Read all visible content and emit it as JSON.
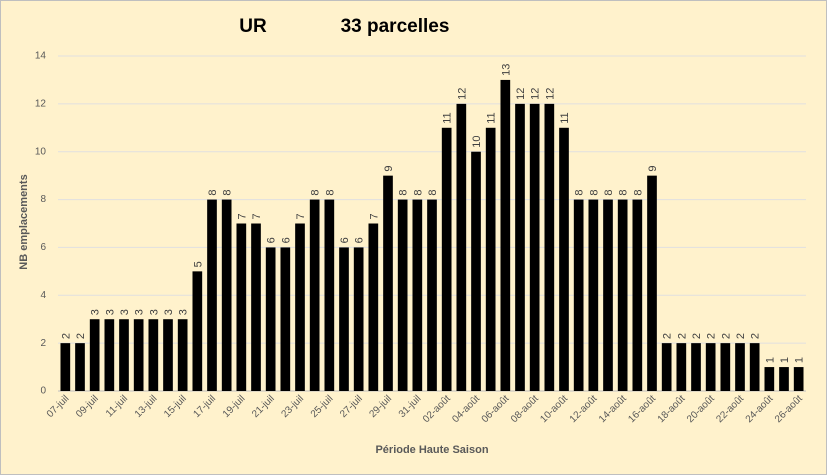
{
  "chart_data": {
    "type": "bar",
    "title": "UR",
    "subtitle": "33 parcelles",
    "x_label": "Période Haute Saison",
    "y_label": "NB emplacements",
    "categories": [
      "07-juil",
      null,
      "09-juil",
      null,
      "11-juil",
      null,
      "13-juil",
      null,
      "15-juil",
      null,
      "17-juil",
      null,
      "19-juil",
      null,
      "21-juil",
      null,
      "23-juil",
      null,
      "25-juil",
      null,
      "27-juil",
      null,
      "29-juil",
      null,
      "31-juil",
      null,
      "02-août",
      null,
      "04-août",
      null,
      "06-août",
      null,
      "08-août",
      null,
      "10-août",
      null,
      "12-août",
      null,
      "14-août",
      null,
      "16-août",
      null,
      "18-août",
      null,
      "20-août",
      null,
      "22-août",
      null,
      "24-août",
      null,
      "26-août"
    ],
    "values": [
      2,
      2,
      3,
      3,
      3,
      3,
      3,
      3,
      3,
      5,
      8,
      8,
      7,
      7,
      6,
      6,
      7,
      8,
      8,
      6,
      6,
      7,
      9,
      8,
      8,
      8,
      11,
      12,
      10,
      11,
      13,
      12,
      12,
      12,
      11,
      8,
      8,
      8,
      8,
      8,
      9,
      2,
      2,
      2,
      2,
      2,
      2,
      2,
      1,
      1,
      1
    ],
    "color": "#000000",
    "ylim": [
      0,
      14
    ],
    "yticks": [
      0,
      2,
      4,
      6,
      8,
      10,
      12,
      14
    ],
    "grid": true
  }
}
